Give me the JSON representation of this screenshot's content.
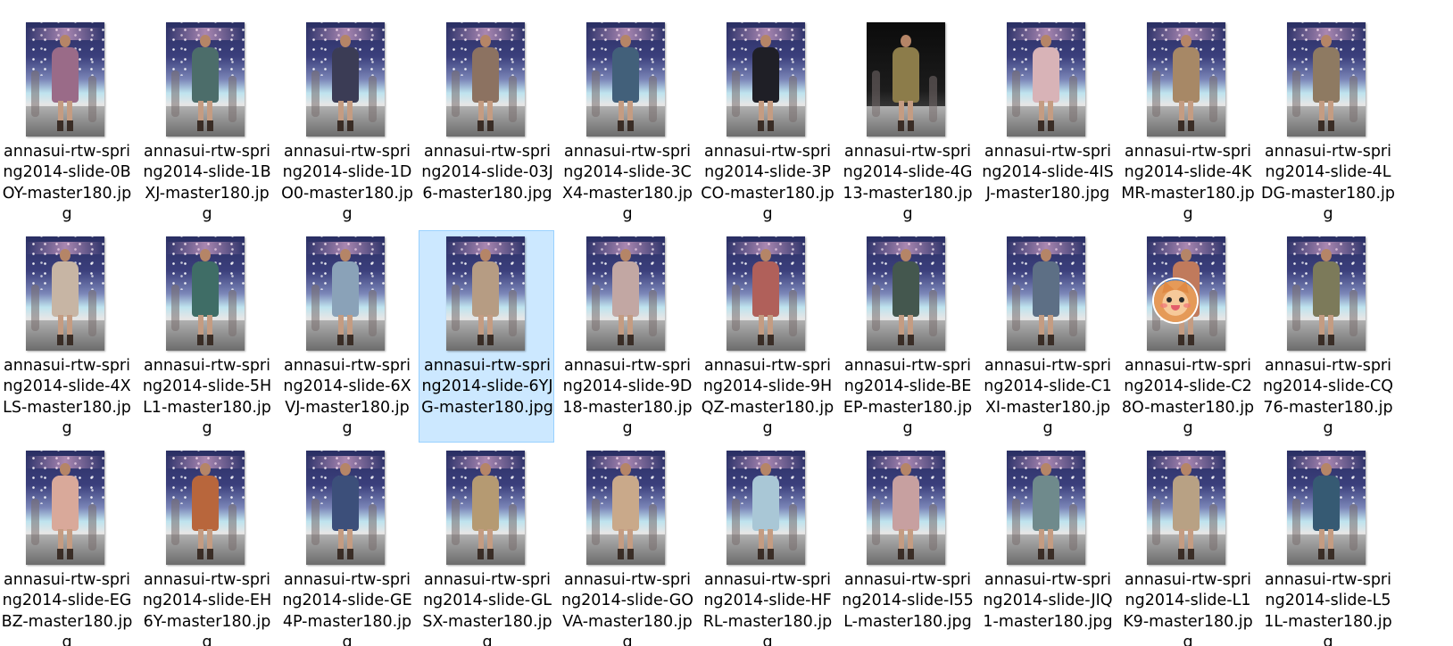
{
  "colors": {
    "selection_background": "#cce8ff",
    "selection_border": "#99d1ff",
    "label_text": "#000000",
    "window_background": "#ffffff"
  },
  "icons": {
    "thumbnail": "image-thumbnail-icon",
    "sticker": "cat-sticker-icon"
  },
  "selected_file": "annasui-rtw-spring2014-slide-6YJG-master180.jpg",
  "files": [
    {
      "name": "annasui-rtw-spring2014-slide-0BOY-master180.jpg",
      "outfit": "#9a6b88"
    },
    {
      "name": "annasui-rtw-spring2014-slide-1BXJ-master180.jpg",
      "outfit": "#4c6d6a"
    },
    {
      "name": "annasui-rtw-spring2014-slide-1DO0-master180.jpg",
      "outfit": "#3b3c55"
    },
    {
      "name": "annasui-rtw-spring2014-slide-03J6-master180.jpg",
      "outfit": "#8c7261"
    },
    {
      "name": "annasui-rtw-spring2014-slide-3CX4-master180.jpg",
      "outfit": "#42607a"
    },
    {
      "name": "annasui-rtw-spring2014-slide-3PCO-master180.jpg",
      "outfit": "#1f1f26"
    },
    {
      "name": "annasui-rtw-spring2014-slide-4G13-master180.jpg",
      "outfit": "#8c7c4a",
      "dark": true
    },
    {
      "name": "annasui-rtw-spring2014-slide-4ISJ-master180.jpg",
      "outfit": "#d8b3b7"
    },
    {
      "name": "annasui-rtw-spring2014-slide-4KMR-master180.jpg",
      "outfit": "#a78866"
    },
    {
      "name": "annasui-rtw-spring2014-slide-4LDG-master180.jpg",
      "outfit": "#8e7a62"
    },
    {
      "name": "annasui-rtw-spring2014-slide-4XLS-master180.jpg",
      "outfit": "#c7b5a4"
    },
    {
      "name": "annasui-rtw-spring2014-slide-5HL1-master180.jpg",
      "outfit": "#3f6d66"
    },
    {
      "name": "annasui-rtw-spring2014-slide-6XVJ-master180.jpg",
      "outfit": "#8aa2b8"
    },
    {
      "name": "annasui-rtw-spring2014-slide-6YJG-master180.jpg",
      "outfit": "#b69c83"
    },
    {
      "name": "annasui-rtw-spring2014-slide-9D18-master180.jpg",
      "outfit": "#c2a7a3"
    },
    {
      "name": "annasui-rtw-spring2014-slide-9HQZ-master180.jpg",
      "outfit": "#b0605a"
    },
    {
      "name": "annasui-rtw-spring2014-slide-BEEP-master180.jpg",
      "outfit": "#44574e"
    },
    {
      "name": "annasui-rtw-spring2014-slide-C1XI-master180.jpg",
      "outfit": "#5d6f85"
    },
    {
      "name": "annasui-rtw-spring2014-slide-C28O-master180.jpg",
      "outfit": "#c07a5c",
      "sticker": true
    },
    {
      "name": "annasui-rtw-spring2014-slide-CQ76-master180.jpg",
      "outfit": "#7c7a5a"
    },
    {
      "name": "annasui-rtw-spring2014-slide-EGBZ-master180.jpg",
      "outfit": "#d9a99a"
    },
    {
      "name": "annasui-rtw-spring2014-slide-EH6Y-master180.jpg",
      "outfit": "#b8663c"
    },
    {
      "name": "annasui-rtw-spring2014-slide-GE4P-master180.jpg",
      "outfit": "#3c4f7a"
    },
    {
      "name": "annasui-rtw-spring2014-slide-GLSX-master180.jpg",
      "outfit": "#b59a72"
    },
    {
      "name": "annasui-rtw-spring2014-slide-GOVA-master180.jpg",
      "outfit": "#c9a98a"
    },
    {
      "name": "annasui-rtw-spring2014-slide-HFRL-master180.jpg",
      "outfit": "#a9c7d6"
    },
    {
      "name": "annasui-rtw-spring2014-slide-I55L-master180.jpg",
      "outfit": "#c7a0a0"
    },
    {
      "name": "annasui-rtw-spring2014-slide-JIQ1-master180.jpg",
      "outfit": "#6f8a8c"
    },
    {
      "name": "annasui-rtw-spring2014-slide-L1K9-master180.jpg",
      "outfit": "#b8a184"
    },
    {
      "name": "annasui-rtw-spring2014-slide-L51L-master180.jpg",
      "outfit": "#365a73"
    }
  ]
}
